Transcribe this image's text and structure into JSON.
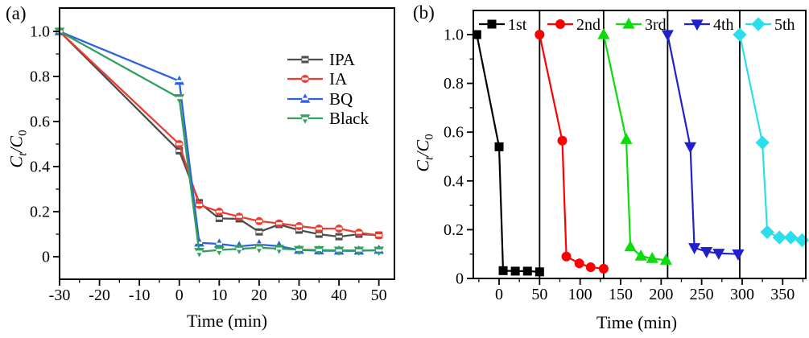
{
  "page": {
    "background": "#ffffff"
  },
  "panels": {
    "a": {
      "label": "(a)",
      "xlabel": "Time (min)",
      "ylabel": {
        "c1": "C",
        "s1": "t",
        "sep": "/",
        "c2": "C",
        "s2": "0"
      }
    },
    "b": {
      "label": "(b)",
      "xlabel": "Time (min)",
      "ylabel": {
        "c1": "C",
        "s1": "t",
        "sep": "/",
        "c2": "C",
        "s2": "0"
      }
    }
  },
  "chart_data": [
    {
      "panel": "a",
      "type": "line",
      "title": "",
      "xlabel": "Time (min)",
      "ylabel": "Ct/C0",
      "xlim": [
        -30,
        53.9
      ],
      "ylim": [
        -0.1,
        1.104
      ],
      "x_ticks": {
        "values": [
          -30,
          -20,
          -10,
          0,
          10,
          20,
          30,
          40,
          50
        ],
        "labels": [
          "-30",
          "-20",
          "-10",
          "0",
          "10",
          "20",
          "30",
          "40",
          "50"
        ],
        "minor_step": 5
      },
      "y_ticks": {
        "values": [
          0,
          0.2,
          0.4,
          0.6,
          0.8,
          1.0
        ],
        "labels": [
          "0",
          "0.2",
          "0.4",
          "0.6",
          "0.8",
          "1.0"
        ],
        "minor_step": 0.1
      },
      "grid": false,
      "legend_position": "inside-right-upper",
      "marker_style": "filled-with-white-stripe",
      "series": [
        {
          "name": "IPA",
          "color": "#4d4d4d",
          "marker": "square",
          "data": [
            [
              -30,
              1.0
            ],
            [
              0,
              0.47
            ],
            [
              5,
              0.24
            ],
            [
              10,
              0.17
            ],
            [
              15,
              0.168
            ],
            [
              20,
              0.11
            ],
            [
              25,
              0.143
            ],
            [
              30,
              0.118
            ],
            [
              35,
              0.1
            ],
            [
              40,
              0.089
            ],
            [
              45,
              0.1
            ],
            [
              50,
              0.096
            ]
          ]
        },
        {
          "name": "IA",
          "color": "#ee3b2f",
          "marker": "circle",
          "data": [
            [
              -30,
              1.0
            ],
            [
              0,
              0.5
            ],
            [
              5,
              0.23
            ],
            [
              10,
              0.2
            ],
            [
              15,
              0.178
            ],
            [
              20,
              0.158
            ],
            [
              25,
              0.148
            ],
            [
              30,
              0.136
            ],
            [
              35,
              0.125
            ],
            [
              40,
              0.125
            ],
            [
              45,
              0.107
            ],
            [
              50,
              0.095
            ]
          ]
        },
        {
          "name": "BQ",
          "color": "#2e62dd",
          "marker": "triangle-up",
          "data": [
            [
              -30,
              1.0
            ],
            [
              0,
              0.78
            ],
            [
              5,
              0.062
            ],
            [
              10,
              0.057
            ],
            [
              15,
              0.046
            ],
            [
              20,
              0.054
            ],
            [
              25,
              0.047
            ],
            [
              30,
              0.03
            ],
            [
              35,
              0.027
            ],
            [
              40,
              0.026
            ],
            [
              45,
              0.026
            ],
            [
              50,
              0.03
            ]
          ]
        },
        {
          "name": "Black",
          "color": "#31a05f",
          "marker": "triangle-down",
          "data": [
            [
              -30,
              1.0
            ],
            [
              0,
              0.705
            ],
            [
              5,
              0.022
            ],
            [
              10,
              0.03
            ],
            [
              15,
              0.035
            ],
            [
              20,
              0.04
            ],
            [
              25,
              0.036
            ],
            [
              30,
              0.031
            ],
            [
              35,
              0.03
            ],
            [
              40,
              0.028
            ],
            [
              45,
              0.028
            ],
            [
              50,
              0.028
            ]
          ]
        }
      ]
    },
    {
      "panel": "b",
      "type": "line",
      "title": "",
      "xlabel": "Time (min)",
      "ylabel": "Ct/C0",
      "xlim": [
        -31.8,
        378.5
      ],
      "ylim": [
        0,
        1.099
      ],
      "x_ticks": {
        "values": [
          0,
          50,
          100,
          150,
          200,
          250,
          300,
          350
        ],
        "labels": [
          "0",
          "50",
          "100",
          "150",
          "200",
          "250",
          "300",
          "350"
        ],
        "minor_step": 25
      },
      "y_ticks": {
        "values": [
          0,
          0.2,
          0.4,
          0.6,
          0.8,
          1.0
        ],
        "labels": [
          "0",
          "0.2",
          "0.4",
          "0.6",
          "0.8",
          "1.0"
        ],
        "minor_step": 0.1
      },
      "grid": false,
      "legend_position": "inside-top-row",
      "marker_style": "filled",
      "separators": [
        50,
        129,
        208,
        297
      ],
      "series": [
        {
          "name": "1st",
          "color": "#000000",
          "marker": "square",
          "data": [
            [
              -27.5,
              1.0
            ],
            [
              0,
              0.54
            ],
            [
              5,
              0.032
            ],
            [
              20,
              0.03
            ],
            [
              35,
              0.03
            ],
            [
              50,
              0.027
            ]
          ]
        },
        {
          "name": "2nd",
          "color": "#fe0000",
          "marker": "circle",
          "data": [
            [
              50,
              1.0
            ],
            [
              78,
              0.565
            ],
            [
              83,
              0.09
            ],
            [
              99,
              0.062
            ],
            [
              113,
              0.046
            ],
            [
              129,
              0.04
            ]
          ]
        },
        {
          "name": "3rd",
          "color": "#0cdc0c",
          "marker": "triangle-up",
          "data": [
            [
              129,
              1.0
            ],
            [
              157,
              0.57
            ],
            [
              162,
              0.13
            ],
            [
              175,
              0.092
            ],
            [
              189,
              0.082
            ],
            [
              206,
              0.075
            ]
          ]
        },
        {
          "name": "4th",
          "color": "#2121cc",
          "marker": "triangle-down",
          "data": [
            [
              208,
              1.0
            ],
            [
              236,
              0.54
            ],
            [
              241,
              0.126
            ],
            [
              256,
              0.11
            ],
            [
              271,
              0.103
            ],
            [
              295,
              0.1
            ]
          ]
        },
        {
          "name": "5th",
          "color": "#2bdfea",
          "marker": "diamond",
          "data": [
            [
              297,
              1.0
            ],
            [
              325,
              0.557
            ],
            [
              331,
              0.19
            ],
            [
              346,
              0.168
            ],
            [
              360,
              0.168
            ],
            [
              374,
              0.157
            ]
          ]
        }
      ]
    }
  ]
}
